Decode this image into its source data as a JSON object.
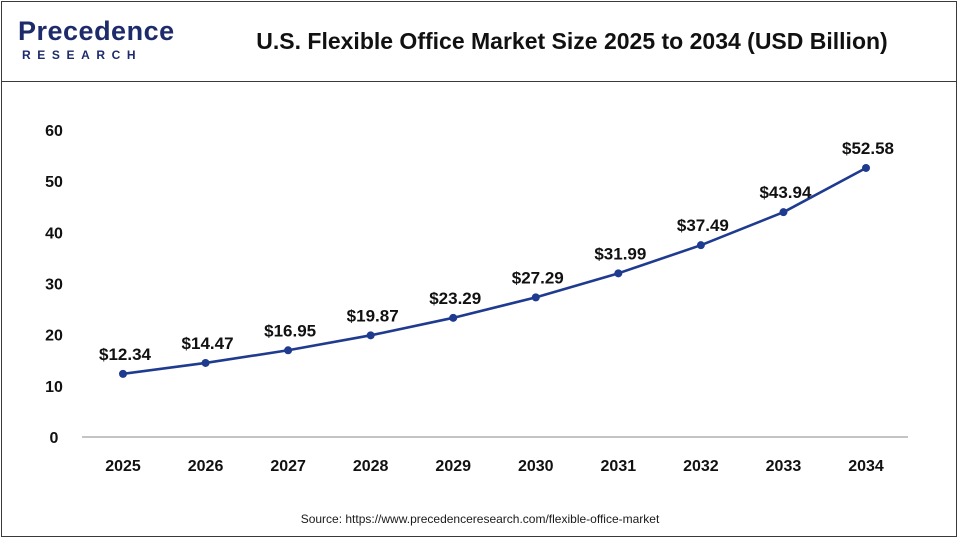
{
  "brand": {
    "logo_top": "Precedence",
    "logo_bottom": "RESEARCH",
    "color": "#1d2b6b"
  },
  "header": {
    "title": "U.S. Flexible Office Market Size 2025 to 2034 (USD Billion)"
  },
  "chart_data": {
    "type": "line",
    "title": "U.S. Flexible Office Market Size 2025 to 2034 (USD Billion)",
    "xlabel": "",
    "ylabel": "",
    "categories": [
      "2025",
      "2026",
      "2027",
      "2028",
      "2029",
      "2030",
      "2031",
      "2032",
      "2033",
      "2034"
    ],
    "series": [
      {
        "values": [
          12.34,
          14.47,
          16.95,
          19.87,
          23.29,
          27.29,
          31.99,
          37.49,
          43.94,
          52.58
        ],
        "labels": [
          "$12.34",
          "$14.47",
          "$16.95",
          "$19.87",
          "$23.29",
          "$27.29",
          "$31.99",
          "$37.49",
          "$43.94",
          "$52.58"
        ],
        "color": "#1f3b8f"
      }
    ],
    "ylim": [
      0,
      60
    ],
    "yticks": [
      "0",
      "10",
      "20",
      "30",
      "40",
      "50",
      "60"
    ],
    "grid": false,
    "legend": "none"
  },
  "footer": {
    "source": "Source: https://www.precedenceresearch.com/flexible-office-market"
  }
}
